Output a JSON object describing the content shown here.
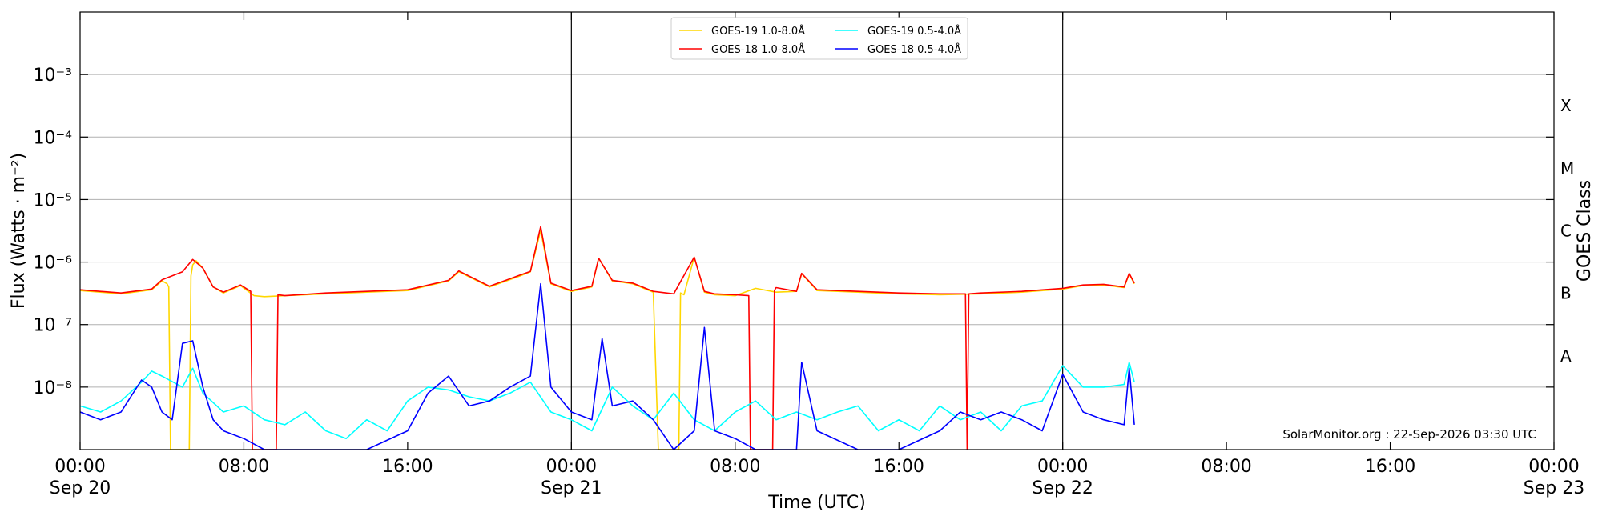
{
  "chart_data": {
    "type": "line",
    "title": "",
    "xlabel": "Time (UTC)",
    "ylabel": "Flux (Watts · m⁻²)",
    "ylabel_right": "GOES Class",
    "y_scale": "log",
    "ylim": [
      1e-09,
      0.01
    ],
    "xlim": [
      "2026-09-20T00:00",
      "2026-09-23T00:00"
    ],
    "grid": "horizontal",
    "legend_position": "top-center",
    "x_ticks": [
      {
        "value": "2026-09-20T00:00",
        "line1": "00:00",
        "line2": "Sep 20"
      },
      {
        "value": "2026-09-20T08:00",
        "line1": "08:00",
        "line2": ""
      },
      {
        "value": "2026-09-20T16:00",
        "line1": "16:00",
        "line2": ""
      },
      {
        "value": "2026-09-21T00:00",
        "line1": "00:00",
        "line2": "Sep 21"
      },
      {
        "value": "2026-09-21T08:00",
        "line1": "08:00",
        "line2": ""
      },
      {
        "value": "2026-09-21T16:00",
        "line1": "16:00",
        "line2": ""
      },
      {
        "value": "2026-09-22T00:00",
        "line1": "00:00",
        "line2": "Sep 22"
      },
      {
        "value": "2026-09-22T08:00",
        "line1": "08:00",
        "line2": ""
      },
      {
        "value": "2026-09-22T16:00",
        "line1": "16:00",
        "line2": ""
      },
      {
        "value": "2026-09-23T00:00",
        "line1": "00:00",
        "line2": "Sep 23"
      }
    ],
    "y_ticks": [
      {
        "value": 1e-08,
        "label": "10⁻⁸"
      },
      {
        "value": 1e-07,
        "label": "10⁻⁷"
      },
      {
        "value": 1e-06,
        "label": "10⁻⁶"
      },
      {
        "value": 1e-05,
        "label": "10⁻⁵"
      },
      {
        "value": 0.0001,
        "label": "10⁻⁴"
      },
      {
        "value": 0.001,
        "label": "10⁻³"
      }
    ],
    "goes_classes": [
      {
        "label": "A",
        "value": 3.16e-08
      },
      {
        "label": "B",
        "value": 3.16e-07
      },
      {
        "label": "C",
        "value": 3.16e-06
      },
      {
        "label": "M",
        "value": 3.16e-05
      },
      {
        "label": "X",
        "value": 0.000316
      }
    ],
    "day_boundaries": [
      "2026-09-21T00:00",
      "2026-09-22T00:00"
    ],
    "annotation": "SolarMonitor.org : 22-Sep-2026 03:30 UTC",
    "series": [
      {
        "name": "GOES-19 1.0-8.0Å",
        "color": "#ffd700",
        "x": [
          "2026-09-20T00:00",
          "2026-09-20T02:00",
          "2026-09-20T03:30",
          "2026-09-20T04:00",
          "2026-09-20T04:15",
          "2026-09-20T04:20",
          "2026-09-20T04:25",
          "2026-09-20T04:40",
          "2026-09-20T05:00",
          "2026-09-20T05:20",
          "2026-09-20T05:25",
          "2026-09-20T05:30",
          "2026-09-20T05:40",
          "2026-09-20T06:00",
          "2026-09-20T06:30",
          "2026-09-20T07:00",
          "2026-09-20T07:50",
          "2026-09-20T08:30",
          "2026-09-20T09:00",
          "2026-09-20T10:00",
          "2026-09-20T12:00",
          "2026-09-20T14:00",
          "2026-09-20T16:00",
          "2026-09-20T18:00",
          "2026-09-20T18:30",
          "2026-09-20T20:00",
          "2026-09-20T21:30",
          "2026-09-20T22:00",
          "2026-09-20T22:30",
          "2026-09-20T23:00",
          "2026-09-21T00:00",
          "2026-09-21T01:00",
          "2026-09-21T01:20",
          "2026-09-21T02:00",
          "2026-09-21T03:00",
          "2026-09-21T04:00",
          "2026-09-21T04:15",
          "2026-09-21T04:20",
          "2026-09-21T04:30",
          "2026-09-21T05:00",
          "2026-09-21T05:15",
          "2026-09-21T05:20",
          "2026-09-21T05:30",
          "2026-09-21T06:00",
          "2026-09-21T06:30",
          "2026-09-21T07:00",
          "2026-09-21T08:00",
          "2026-09-21T09:00",
          "2026-09-21T10:00",
          "2026-09-21T11:00",
          "2026-09-21T11:15",
          "2026-09-21T12:00",
          "2026-09-21T14:00",
          "2026-09-21T16:00",
          "2026-09-21T18:00",
          "2026-09-21T20:00",
          "2026-09-21T22:00",
          "2026-09-22T00:00",
          "2026-09-22T01:00",
          "2026-09-22T02:00",
          "2026-09-22T03:00",
          "2026-09-22T03:15",
          "2026-09-22T03:30"
        ],
        "values": [
          3.5e-07,
          3.1e-07,
          3.6e-07,
          5e-07,
          4.5e-07,
          4e-07,
          1e-09,
          1e-09,
          1e-09,
          1e-09,
          6e-07,
          9e-07,
          1.05e-06,
          8e-07,
          4e-07,
          3.2e-07,
          4.2e-07,
          2.9e-07,
          2.8e-07,
          2.9e-07,
          3.1e-07,
          3.3e-07,
          3.5e-07,
          5e-07,
          7e-07,
          4e-07,
          6e-07,
          7e-07,
          3.2e-06,
          4.5e-07,
          3.4e-07,
          4e-07,
          1.15e-06,
          5e-07,
          4.5e-07,
          3.3e-07,
          1e-09,
          1e-09,
          1e-09,
          1e-09,
          1e-09,
          3.2e-07,
          3e-07,
          1.2e-06,
          3.3e-07,
          3e-07,
          2.9e-07,
          3.8e-07,
          3.3e-07,
          3.4e-07,
          6.5e-07,
          3.5e-07,
          3.3e-07,
          3.1e-07,
          3e-07,
          3.1e-07,
          3.3e-07,
          3.7e-07,
          4.2e-07,
          4.3e-07,
          3.9e-07,
          6.5e-07,
          4.5e-07
        ]
      },
      {
        "name": "GOES-18 1.0-8.0Å",
        "color": "#ff0000",
        "x": [
          "2026-09-20T00:00",
          "2026-09-20T02:00",
          "2026-09-20T03:30",
          "2026-09-20T04:00",
          "2026-09-20T05:00",
          "2026-09-20T05:30",
          "2026-09-20T06:00",
          "2026-09-20T06:30",
          "2026-09-20T07:00",
          "2026-09-20T07:50",
          "2026-09-20T08:20",
          "2026-09-20T08:25",
          "2026-09-20T08:30",
          "2026-09-20T09:35",
          "2026-09-20T09:40",
          "2026-09-20T10:00",
          "2026-09-20T12:00",
          "2026-09-20T14:00",
          "2026-09-20T16:00",
          "2026-09-20T18:00",
          "2026-09-20T18:30",
          "2026-09-20T20:00",
          "2026-09-20T21:30",
          "2026-09-20T22:00",
          "2026-09-20T22:30",
          "2026-09-20T23:00",
          "2026-09-21T00:00",
          "2026-09-21T01:00",
          "2026-09-21T01:20",
          "2026-09-21T02:00",
          "2026-09-21T03:00",
          "2026-09-21T04:00",
          "2026-09-21T05:00",
          "2026-09-21T06:00",
          "2026-09-21T06:30",
          "2026-09-21T07:00",
          "2026-09-21T08:00",
          "2026-09-21T08:40",
          "2026-09-21T08:45",
          "2026-09-21T08:50",
          "2026-09-21T09:50",
          "2026-09-21T09:55",
          "2026-09-21T10:00",
          "2026-09-21T11:00",
          "2026-09-21T11:15",
          "2026-09-21T12:00",
          "2026-09-21T14:00",
          "2026-09-21T16:00",
          "2026-09-21T18:00",
          "2026-09-21T19:15",
          "2026-09-21T19:20",
          "2026-09-21T19:25",
          "2026-09-21T20:00",
          "2026-09-21T22:00",
          "2026-09-22T00:00",
          "2026-09-22T01:00",
          "2026-09-22T02:00",
          "2026-09-22T03:00",
          "2026-09-22T03:15",
          "2026-09-22T03:30"
        ],
        "values": [
          3.6e-07,
          3.2e-07,
          3.7e-07,
          5.2e-07,
          7e-07,
          1.1e-06,
          8e-07,
          4e-07,
          3.3e-07,
          4.3e-07,
          3.4e-07,
          1e-09,
          1e-09,
          1e-09,
          3e-07,
          2.9e-07,
          3.2e-07,
          3.4e-07,
          3.6e-07,
          5.1e-07,
          7.2e-07,
          4.1e-07,
          6.2e-07,
          7.1e-07,
          3.7e-06,
          4.6e-07,
          3.5e-07,
          4.1e-07,
          1.15e-06,
          5.1e-07,
          4.6e-07,
          3.4e-07,
          3.1e-07,
          1.2e-06,
          3.4e-07,
          3.1e-07,
          3e-07,
          2.9e-07,
          1e-09,
          1e-09,
          1e-09,
          3.5e-07,
          3.9e-07,
          3.4e-07,
          6.6e-07,
          3.6e-07,
          3.4e-07,
          3.2e-07,
          3.1e-07,
          3.1e-07,
          1e-09,
          3.1e-07,
          3.2e-07,
          3.4e-07,
          3.8e-07,
          4.3e-07,
          4.4e-07,
          4e-07,
          6.6e-07,
          4.6e-07
        ]
      },
      {
        "name": "GOES-19 0.5-4.0Å",
        "color": "#00ffff",
        "x": [
          "2026-09-20T00:00",
          "2026-09-20T01:00",
          "2026-09-20T02:00",
          "2026-09-20T03:00",
          "2026-09-20T03:30",
          "2026-09-20T04:00",
          "2026-09-20T05:00",
          "2026-09-20T05:30",
          "2026-09-20T06:00",
          "2026-09-20T07:00",
          "2026-09-20T08:00",
          "2026-09-20T09:00",
          "2026-09-20T10:00",
          "2026-09-20T11:00",
          "2026-09-20T12:00",
          "2026-09-20T13:00",
          "2026-09-20T14:00",
          "2026-09-20T15:00",
          "2026-09-20T16:00",
          "2026-09-20T17:00",
          "2026-09-20T18:00",
          "2026-09-20T19:00",
          "2026-09-20T20:00",
          "2026-09-20T21:00",
          "2026-09-20T22:00",
          "2026-09-20T23:00",
          "2026-09-21T00:00",
          "2026-09-21T01:00",
          "2026-09-21T02:00",
          "2026-09-21T03:00",
          "2026-09-21T04:00",
          "2026-09-21T05:00",
          "2026-09-21T06:00",
          "2026-09-21T07:00",
          "2026-09-21T08:00",
          "2026-09-21T09:00",
          "2026-09-21T10:00",
          "2026-09-21T11:00",
          "2026-09-21T12:00",
          "2026-09-21T13:00",
          "2026-09-21T14:00",
          "2026-09-21T15:00",
          "2026-09-21T16:00",
          "2026-09-21T17:00",
          "2026-09-21T18:00",
          "2026-09-21T19:00",
          "2026-09-21T20:00",
          "2026-09-21T21:00",
          "2026-09-21T22:00",
          "2026-09-21T23:00",
          "2026-09-22T00:00",
          "2026-09-22T01:00",
          "2026-09-22T02:00",
          "2026-09-22T03:00",
          "2026-09-22T03:15",
          "2026-09-22T03:30"
        ],
        "values": [
          5e-09,
          4e-09,
          6e-09,
          1.2e-08,
          1.8e-08,
          1.5e-08,
          1e-08,
          2e-08,
          8e-09,
          4e-09,
          5e-09,
          3e-09,
          2.5e-09,
          4e-09,
          2e-09,
          1.5e-09,
          3e-09,
          2e-09,
          6e-09,
          1e-08,
          9e-09,
          7e-09,
          6e-09,
          8e-09,
          1.2e-08,
          4e-09,
          3e-09,
          2e-09,
          1e-08,
          5e-09,
          3e-09,
          8e-09,
          3e-09,
          2e-09,
          4e-09,
          6e-09,
          3e-09,
          4e-09,
          3e-09,
          4e-09,
          5e-09,
          2e-09,
          3e-09,
          2e-09,
          5e-09,
          3e-09,
          4e-09,
          2e-09,
          5e-09,
          6e-09,
          2.2e-08,
          1e-08,
          1e-08,
          1.1e-08,
          2.5e-08,
          1.2e-08
        ]
      },
      {
        "name": "GOES-18 0.5-4.0Å",
        "color": "#0000ff",
        "x": [
          "2026-09-20T00:00",
          "2026-09-20T01:00",
          "2026-09-20T02:00",
          "2026-09-20T03:00",
          "2026-09-20T03:30",
          "2026-09-20T04:00",
          "2026-09-20T04:30",
          "2026-09-20T05:00",
          "2026-09-20T05:30",
          "2026-09-20T06:00",
          "2026-09-20T06:30",
          "2026-09-20T07:00",
          "2026-09-20T08:00",
          "2026-09-20T09:00",
          "2026-09-20T10:00",
          "2026-09-20T12:00",
          "2026-09-20T14:00",
          "2026-09-20T16:00",
          "2026-09-20T17:00",
          "2026-09-20T18:00",
          "2026-09-20T19:00",
          "2026-09-20T20:00",
          "2026-09-20T21:00",
          "2026-09-20T22:00",
          "2026-09-20T22:30",
          "2026-09-20T23:00",
          "2026-09-21T00:00",
          "2026-09-21T01:00",
          "2026-09-21T01:30",
          "2026-09-21T02:00",
          "2026-09-21T03:00",
          "2026-09-21T04:00",
          "2026-09-21T05:00",
          "2026-09-21T06:00",
          "2026-09-21T06:30",
          "2026-09-21T07:00",
          "2026-09-21T08:00",
          "2026-09-21T09:00",
          "2026-09-21T10:00",
          "2026-09-21T11:00",
          "2026-09-21T11:15",
          "2026-09-21T12:00",
          "2026-09-21T14:00",
          "2026-09-21T16:00",
          "2026-09-21T18:00",
          "2026-09-21T19:00",
          "2026-09-21T20:00",
          "2026-09-21T21:00",
          "2026-09-21T22:00",
          "2026-09-21T23:00",
          "2026-09-22T00:00",
          "2026-09-22T01:00",
          "2026-09-22T02:00",
          "2026-09-22T03:00",
          "2026-09-22T03:15",
          "2026-09-22T03:30"
        ],
        "values": [
          4e-09,
          3e-09,
          4e-09,
          1.3e-08,
          1e-08,
          4e-09,
          3e-09,
          5e-08,
          5.5e-08,
          1e-08,
          3e-09,
          2e-09,
          1.5e-09,
          1e-09,
          1e-09,
          1e-09,
          1e-09,
          2e-09,
          8e-09,
          1.5e-08,
          5e-09,
          6e-09,
          1e-08,
          1.5e-08,
          4.5e-07,
          1e-08,
          4e-09,
          3e-09,
          6e-08,
          5e-09,
          6e-09,
          3e-09,
          1e-09,
          2e-09,
          9e-08,
          2e-09,
          1.5e-09,
          1e-09,
          1e-09,
          1e-09,
          2.5e-08,
          2e-09,
          1e-09,
          1e-09,
          2e-09,
          4e-09,
          3e-09,
          4e-09,
          3e-09,
          2e-09,
          1.6e-08,
          4e-09,
          3e-09,
          2.5e-09,
          2e-08,
          2.5e-09
        ]
      }
    ]
  }
}
